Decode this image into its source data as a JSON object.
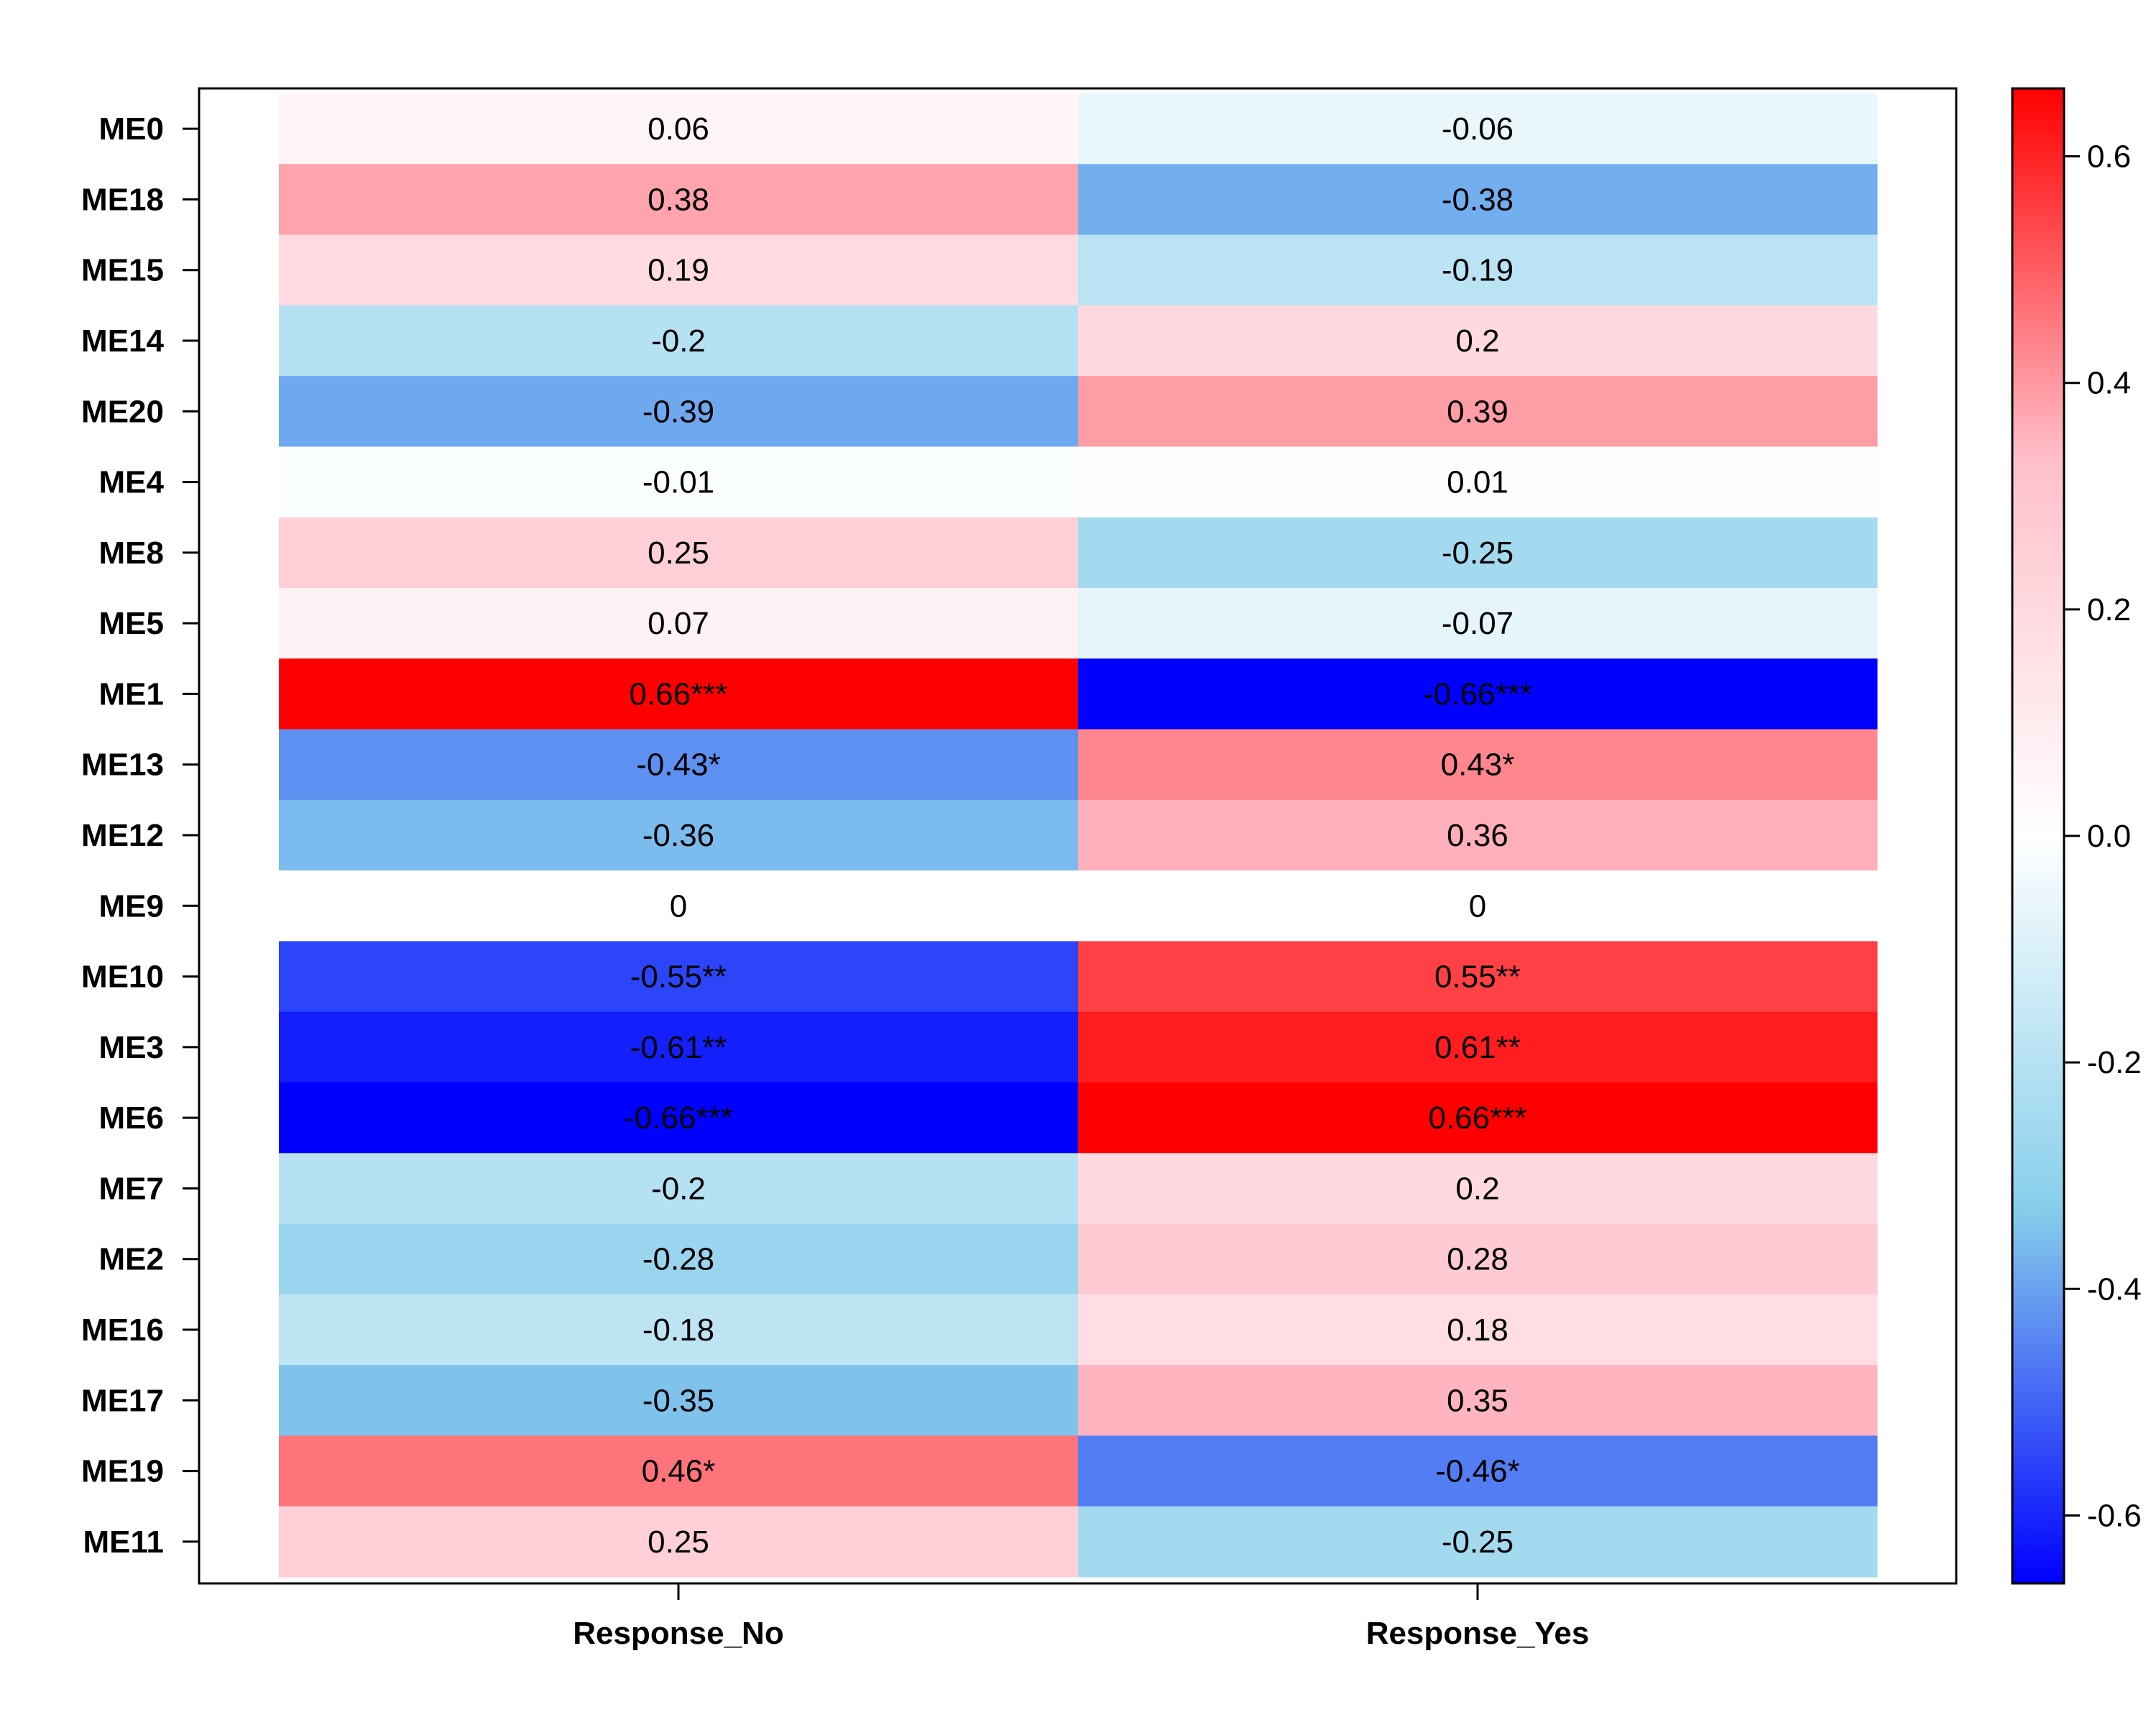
{
  "chart_data": {
    "type": "heatmap",
    "title": "",
    "xlabel": "",
    "ylabel": "",
    "columns": [
      "Response_No",
      "Response_Yes"
    ],
    "rows": [
      "ME0",
      "ME18",
      "ME15",
      "ME14",
      "ME20",
      "ME4",
      "ME8",
      "ME5",
      "ME1",
      "ME13",
      "ME12",
      "ME9",
      "ME10",
      "ME3",
      "ME6",
      "ME7",
      "ME2",
      "ME16",
      "ME17",
      "ME19",
      "ME11"
    ],
    "values": [
      [
        0.06,
        -0.06
      ],
      [
        0.38,
        -0.38
      ],
      [
        0.19,
        -0.19
      ],
      [
        -0.2,
        0.2
      ],
      [
        -0.39,
        0.39
      ],
      [
        -0.01,
        0.01
      ],
      [
        0.25,
        -0.25
      ],
      [
        0.07,
        -0.07
      ],
      [
        0.66,
        -0.66
      ],
      [
        -0.43,
        0.43
      ],
      [
        -0.36,
        0.36
      ],
      [
        0,
        0
      ],
      [
        -0.55,
        0.55
      ],
      [
        -0.61,
        0.61
      ],
      [
        -0.66,
        0.66
      ],
      [
        -0.2,
        0.2
      ],
      [
        -0.28,
        0.28
      ],
      [
        -0.18,
        0.18
      ],
      [
        -0.35,
        0.35
      ],
      [
        0.46,
        -0.46
      ],
      [
        0.25,
        -0.25
      ]
    ],
    "cell_text": [
      [
        "0.06",
        "-0.06"
      ],
      [
        "0.38",
        "-0.38"
      ],
      [
        "0.19",
        "-0.19"
      ],
      [
        "-0.2",
        "0.2"
      ],
      [
        "-0.39",
        "0.39"
      ],
      [
        "-0.01",
        "0.01"
      ],
      [
        "0.25",
        "-0.25"
      ],
      [
        "0.07",
        "-0.07"
      ],
      [
        "0.66***",
        "-0.66***"
      ],
      [
        "-0.43*",
        "0.43*"
      ],
      [
        "-0.36",
        "0.36"
      ],
      [
        "0",
        "0"
      ],
      [
        "-0.55**",
        "0.55**"
      ],
      [
        "-0.61**",
        "0.61**"
      ],
      [
        "-0.66***",
        "0.66***"
      ],
      [
        "-0.2",
        "0.2"
      ],
      [
        "-0.28",
        "0.28"
      ],
      [
        "-0.18",
        "0.18"
      ],
      [
        "-0.35",
        "0.35"
      ],
      [
        "0.46*",
        "-0.46*"
      ],
      [
        "0.25",
        "-0.25"
      ]
    ],
    "colorbar": {
      "range": [
        -0.66,
        0.66
      ],
      "ticks": [
        -0.6,
        -0.4,
        -0.2,
        0.0,
        0.2,
        0.4,
        0.6
      ],
      "tick_labels": [
        "-0.6",
        "-0.4",
        "-0.2",
        "0.0",
        "0.2",
        "0.4",
        "0.6"
      ],
      "colors": [
        "#0000ff",
        "#87ceeb",
        "#ffffff",
        "#ffc0cb",
        "#ff0000"
      ]
    }
  }
}
